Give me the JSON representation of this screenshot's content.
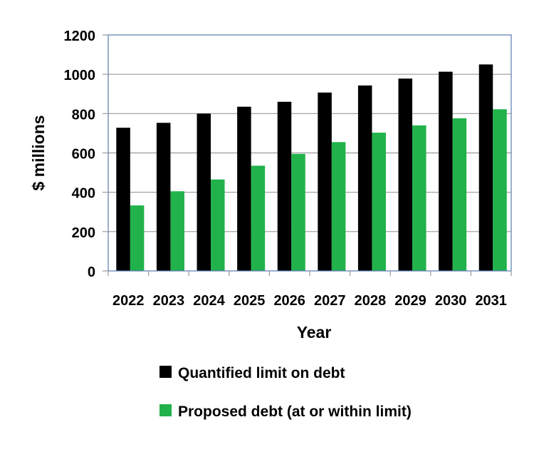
{
  "chart_data": {
    "type": "bar",
    "categories": [
      "2022",
      "2023",
      "2024",
      "2025",
      "2026",
      "2027",
      "2028",
      "2029",
      "2030",
      "2031"
    ],
    "series": [
      {
        "name": "Quantified limit on debt",
        "color": "#000000",
        "values": [
          728,
          753,
          800,
          835,
          860,
          907,
          943,
          978,
          1013,
          1050
        ]
      },
      {
        "name": "Proposed debt (at or within limit)",
        "color": "#21b24b",
        "values": [
          333,
          405,
          465,
          535,
          595,
          655,
          703,
          740,
          776,
          822
        ]
      }
    ],
    "title": "",
    "xlabel": "Year",
    "ylabel": "$ millions",
    "ylim": [
      0,
      1200
    ],
    "yticks": [
      0,
      200,
      400,
      600,
      800,
      1000,
      1200
    ],
    "grid": true,
    "legend_position": "bottom",
    "colors": {
      "grid": "#9a9a9a",
      "frame": "#5a7ab0"
    }
  }
}
